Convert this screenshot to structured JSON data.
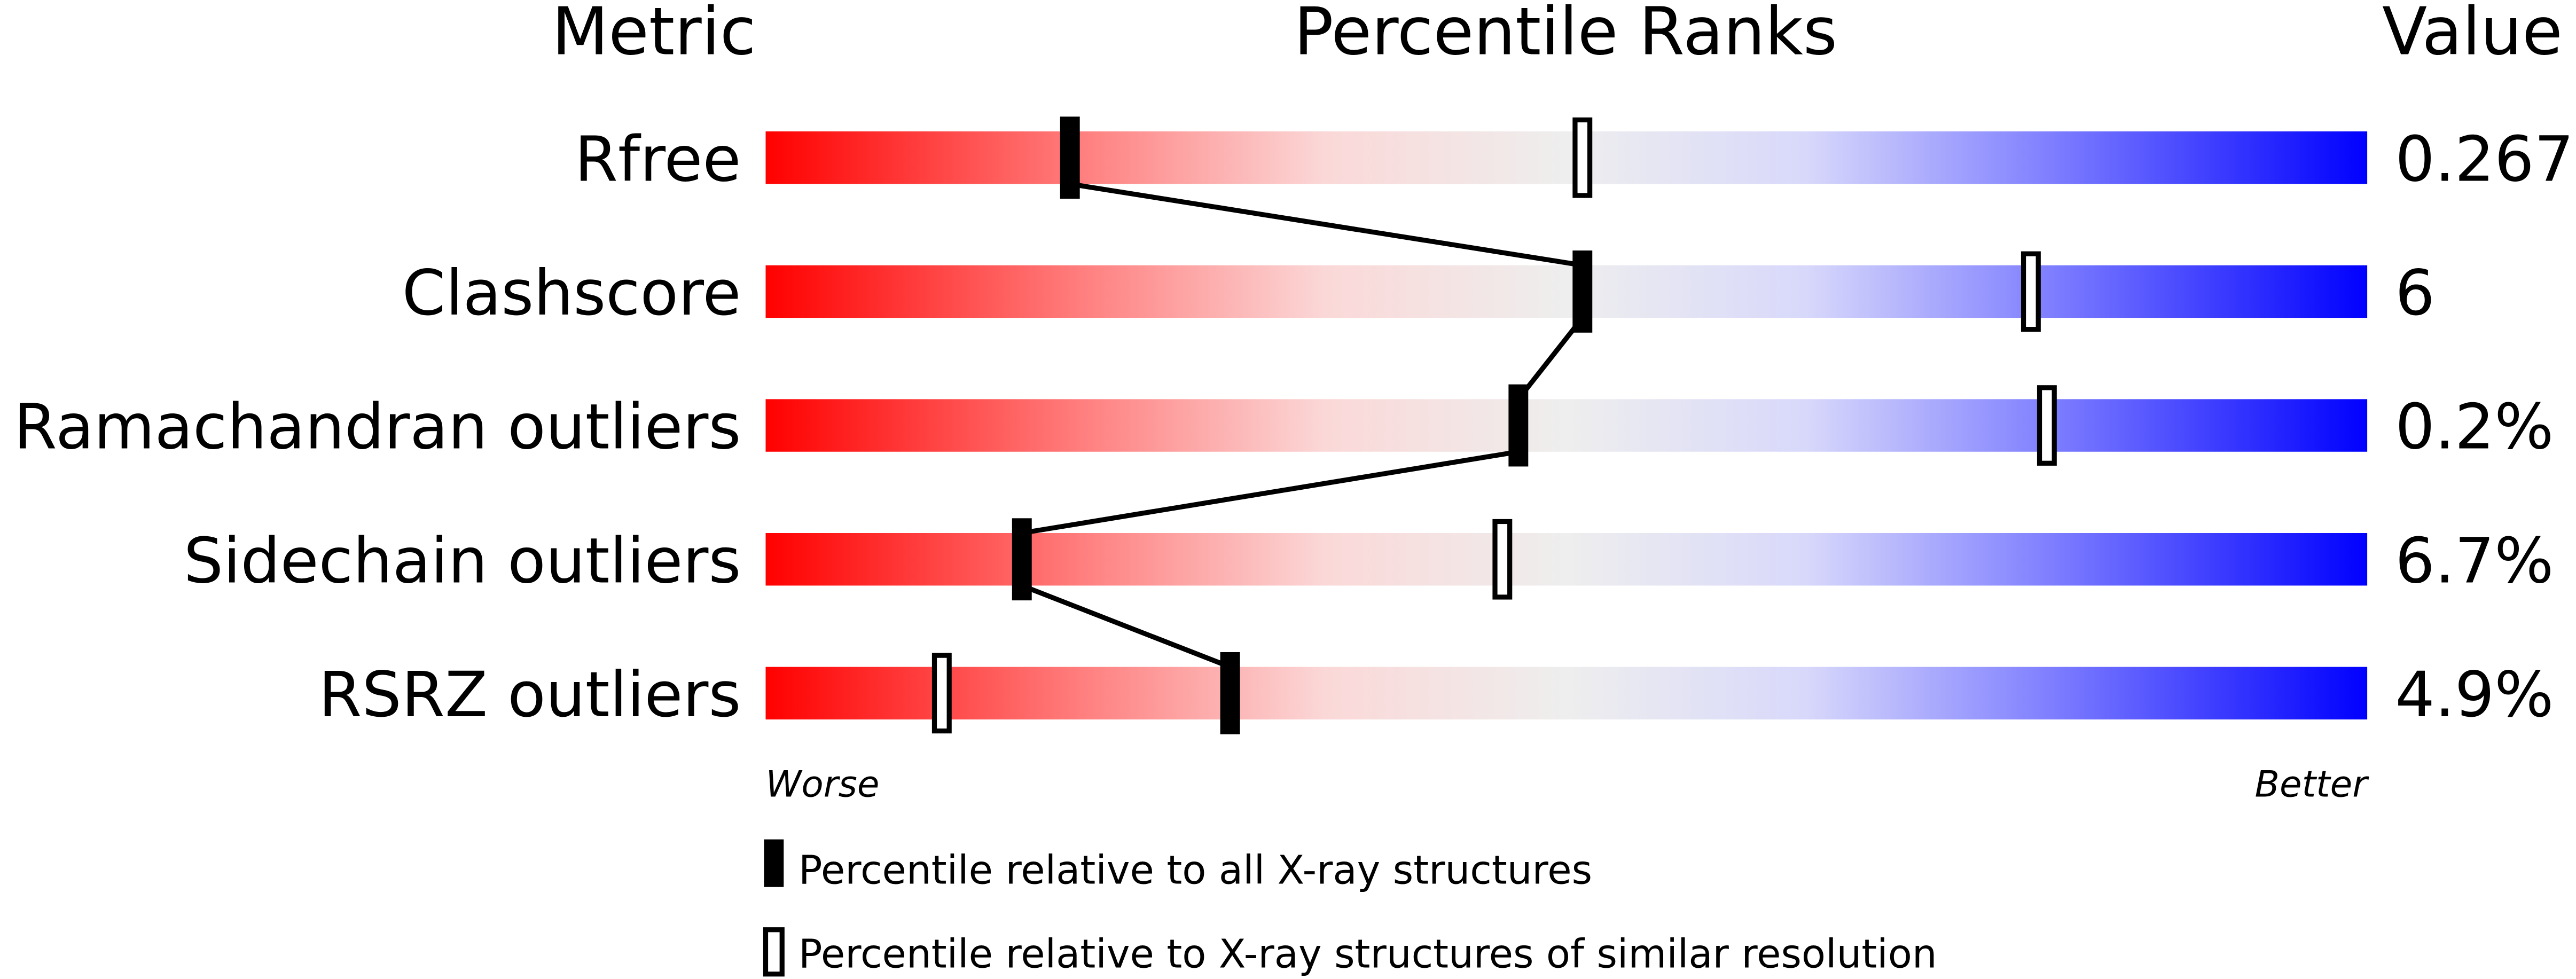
{
  "chart_data": {
    "type": "percentile-slider",
    "headers": {
      "metric": "Metric",
      "ranks": "Percentile Ranks",
      "value": "Value"
    },
    "xlim": [
      0,
      100
    ],
    "rows": [
      {
        "metric": "Rfree",
        "value": "0.267",
        "percentile_all": 19,
        "percentile_similar": 51
      },
      {
        "metric": "Clashscore",
        "value": "6",
        "percentile_all": 51,
        "percentile_similar": 79
      },
      {
        "metric": "Ramachandran outliers",
        "value": "0.2%",
        "percentile_all": 47,
        "percentile_similar": 80
      },
      {
        "metric": "Sidechain outliers",
        "value": "6.7%",
        "percentile_all": 16,
        "percentile_similar": 46
      },
      {
        "metric": "RSRZ outliers",
        "value": "4.9%",
        "percentile_all": 29,
        "percentile_similar": 11
      }
    ],
    "axis": {
      "left": "Worse",
      "right": "Better"
    },
    "legend": {
      "all": "Percentile relative to all X-ray structures",
      "similar": "Percentile relative to X-ray structures of similar resolution"
    },
    "colors": {
      "worse": "#ff0000",
      "middle": "#eeeeee",
      "better": "#0000ff",
      "marker": "#000000"
    }
  }
}
